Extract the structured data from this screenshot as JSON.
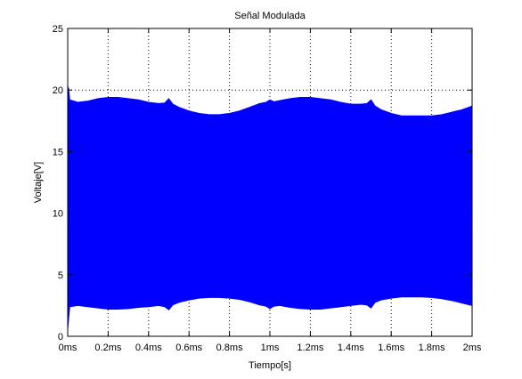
{
  "chart_data": {
    "type": "area",
    "title": "Señal Modulada",
    "xlabel": "Tiempo[s]",
    "ylabel": "Voltaje[V]",
    "x_unit": "ms",
    "xlim": [
      0,
      2
    ],
    "ylim": [
      0,
      25
    ],
    "x_ticks": [
      0,
      0.2,
      0.4,
      0.6,
      0.8,
      1.0,
      1.2,
      1.4,
      1.6,
      1.8,
      2.0
    ],
    "x_tick_labels": [
      "0ms",
      "0.2ms",
      "0.4ms",
      "0.6ms",
      "0.8ms",
      "1ms",
      "1.2ms",
      "1.4ms",
      "1.6ms",
      "1.8ms",
      "2ms"
    ],
    "y_ticks": [
      0,
      5,
      10,
      15,
      20,
      25
    ],
    "y_tick_labels": [
      "0",
      "5",
      "10",
      "15",
      "20",
      "25"
    ],
    "grid": true,
    "series": [
      {
        "color": "#0000ff",
        "x": [
          0.0,
          0.005,
          0.01,
          0.05,
          0.1,
          0.15,
          0.2,
          0.25,
          0.3,
          0.35,
          0.4,
          0.45,
          0.48,
          0.5,
          0.52,
          0.55,
          0.6,
          0.65,
          0.7,
          0.75,
          0.8,
          0.85,
          0.9,
          0.95,
          0.98,
          1.0,
          1.02,
          1.05,
          1.1,
          1.15,
          1.2,
          1.25,
          1.3,
          1.35,
          1.4,
          1.45,
          1.48,
          1.5,
          1.52,
          1.55,
          1.6,
          1.65,
          1.7,
          1.75,
          1.8,
          1.85,
          1.9,
          1.95,
          2.0
        ],
        "upper": [
          20.3,
          20.1,
          19.2,
          19.0,
          19.1,
          19.3,
          19.4,
          19.4,
          19.3,
          19.2,
          19.0,
          18.9,
          18.95,
          19.3,
          18.85,
          18.6,
          18.3,
          18.1,
          18.0,
          18.0,
          18.1,
          18.3,
          18.6,
          18.9,
          19.0,
          19.2,
          19.05,
          19.15,
          19.3,
          19.4,
          19.4,
          19.3,
          19.2,
          19.0,
          18.85,
          18.85,
          18.9,
          19.2,
          18.7,
          18.4,
          18.1,
          17.9,
          17.9,
          17.9,
          17.9,
          18.0,
          18.2,
          18.4,
          18.7
        ],
        "lower": [
          0.6,
          1.5,
          2.4,
          2.5,
          2.4,
          2.3,
          2.2,
          2.2,
          2.25,
          2.35,
          2.4,
          2.5,
          2.4,
          2.15,
          2.55,
          2.75,
          2.95,
          3.1,
          3.15,
          3.15,
          3.1,
          3.0,
          2.8,
          2.55,
          2.45,
          2.25,
          2.45,
          2.5,
          2.35,
          2.25,
          2.2,
          2.2,
          2.3,
          2.4,
          2.5,
          2.6,
          2.55,
          2.3,
          2.75,
          2.95,
          3.1,
          3.2,
          3.2,
          3.2,
          3.15,
          3.05,
          2.9,
          2.7,
          2.5
        ]
      }
    ]
  }
}
